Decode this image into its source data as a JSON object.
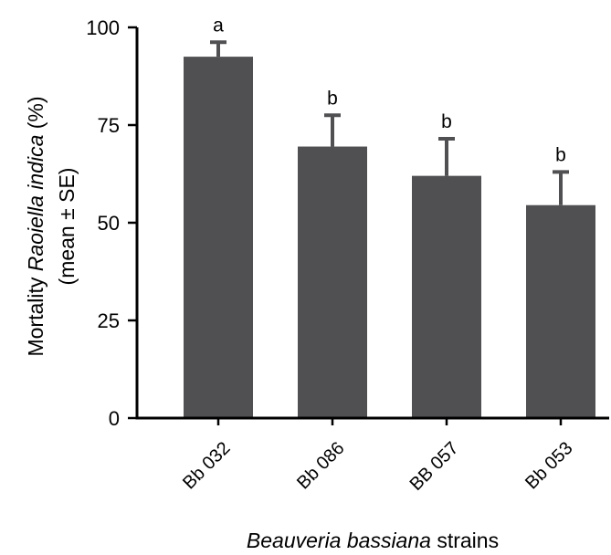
{
  "chart_data": {
    "type": "bar",
    "categories": [
      "Bb 032",
      "Bb 086",
      "BB 057",
      "Bb 053"
    ],
    "values": [
      92.5,
      69.5,
      62,
      54.5
    ],
    "errors": [
      3.7,
      8,
      9.5,
      8.5
    ],
    "significance": [
      "a",
      "b",
      "b",
      "b"
    ],
    "ylim": [
      0,
      100
    ],
    "yticks": [
      0,
      25,
      50,
      75,
      100
    ],
    "ylabel": {
      "lines": [
        [
          {
            "text": "Mortality ",
            "italic": false
          },
          {
            "text": "Raoiella indica",
            "italic": true
          },
          {
            "text": " (%)",
            "italic": false
          }
        ],
        [
          {
            "text": "(mean ± SE)",
            "italic": false
          }
        ]
      ]
    },
    "xlabel": {
      "parts": [
        {
          "text": "Beauveria bassiana",
          "italic": true
        },
        {
          "text": "  strains",
          "italic": false
        }
      ]
    },
    "grid": false,
    "colors": {
      "bar": "#505053",
      "axis": "#000000"
    }
  }
}
